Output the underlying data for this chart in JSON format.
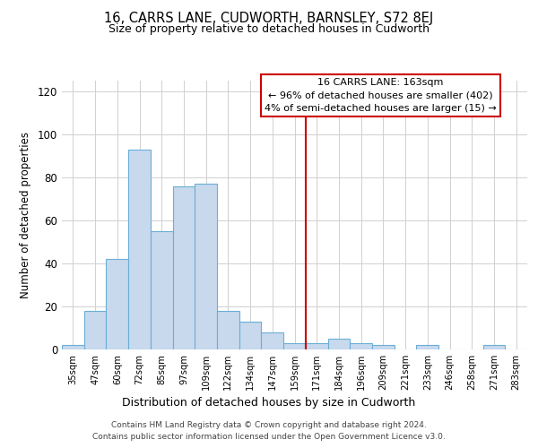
{
  "title": "16, CARRS LANE, CUDWORTH, BARNSLEY, S72 8EJ",
  "subtitle": "Size of property relative to detached houses in Cudworth",
  "xlabel": "Distribution of detached houses by size in Cudworth",
  "ylabel": "Number of detached properties",
  "bar_labels": [
    "35sqm",
    "47sqm",
    "60sqm",
    "72sqm",
    "85sqm",
    "97sqm",
    "109sqm",
    "122sqm",
    "134sqm",
    "147sqm",
    "159sqm",
    "171sqm",
    "184sqm",
    "196sqm",
    "209sqm",
    "221sqm",
    "233sqm",
    "246sqm",
    "258sqm",
    "271sqm",
    "283sqm"
  ],
  "bar_values": [
    2,
    18,
    42,
    93,
    55,
    76,
    77,
    18,
    13,
    8,
    3,
    3,
    5,
    3,
    2,
    0,
    2,
    0,
    0,
    2,
    0
  ],
  "bar_color": "#c8d9ee",
  "bar_edge_color": "#6aaed6",
  "property_line_x": 10.5,
  "property_line_color": "#cc0000",
  "box_title": "16 CARRS LANE: 163sqm",
  "box_line1": "← 96% of detached houses are smaller (402)",
  "box_line2": "4% of semi-detached houses are larger (15) →",
  "box_color": "#ffffff",
  "box_edge_color": "#cc0000",
  "ylim": [
    0,
    125
  ],
  "yticks": [
    0,
    20,
    40,
    60,
    80,
    100,
    120
  ],
  "footnote1": "Contains HM Land Registry data © Crown copyright and database right 2024.",
  "footnote2": "Contains public sector information licensed under the Open Government Licence v3.0.",
  "bg_color": "#ffffff",
  "grid_color": "#d0d0d0"
}
